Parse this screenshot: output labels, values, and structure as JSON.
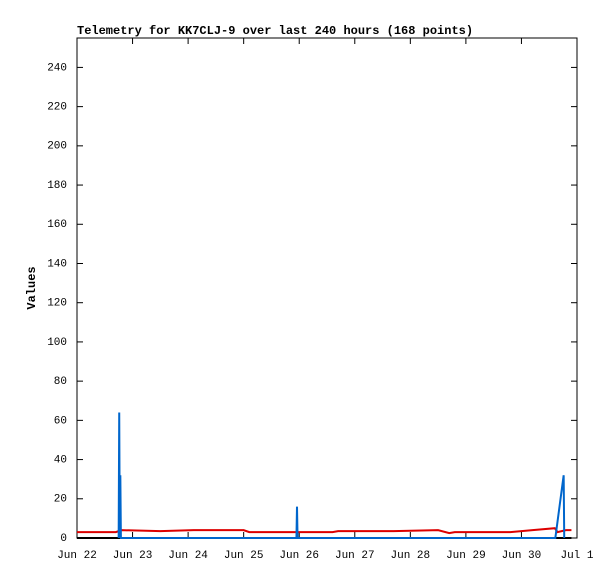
{
  "chart_data": {
    "type": "line",
    "title": "Telemetry for KK7CLJ-9 over last 240 hours (168 points)",
    "y_label": "Values",
    "xlim": [
      0,
      9
    ],
    "xticks": [
      {
        "value": 0,
        "label": "Jun 22"
      },
      {
        "value": 1,
        "label": "Jun 23"
      },
      {
        "value": 2,
        "label": "Jun 24"
      },
      {
        "value": 3,
        "label": "Jun 25"
      },
      {
        "value": 4,
        "label": "Jun 26"
      },
      {
        "value": 5,
        "label": "Jun 27"
      },
      {
        "value": 6,
        "label": "Jun 28"
      },
      {
        "value": 7,
        "label": "Jun 29"
      },
      {
        "value": 8,
        "label": "Jun 30"
      },
      {
        "value": 9,
        "label": "Jul 1"
      }
    ],
    "ylim": [
      0,
      255
    ],
    "yticks": [
      0,
      20,
      40,
      60,
      80,
      100,
      120,
      140,
      160,
      180,
      200,
      220,
      240
    ],
    "grid": false,
    "series": [
      {
        "color": "#000000",
        "x": [
          0,
          8.9
        ],
        "values": [
          0,
          0
        ]
      },
      {
        "color": "#dd0000",
        "x": [
          0,
          0.7,
          0.8,
          1.5,
          2.1,
          3.0,
          3.1,
          4.6,
          4.7,
          5.7,
          6.5,
          6.7,
          6.8,
          7.8,
          8.2,
          8.6,
          8.65,
          8.8,
          8.9
        ],
        "values": [
          3,
          3,
          4,
          3.5,
          4,
          4,
          3,
          3,
          3.5,
          3.5,
          4,
          2.5,
          3,
          3,
          4,
          5,
          3,
          4,
          4
        ]
      },
      {
        "color": "#0066cc",
        "x": [
          0.75,
          0.76,
          0.77,
          0.78,
          0.79,
          3.95,
          3.96,
          3.97,
          8.61,
          8.76,
          8.77
        ],
        "values": [
          0,
          64,
          0,
          32,
          0,
          0,
          16,
          0,
          0,
          32,
          0
        ]
      }
    ]
  }
}
